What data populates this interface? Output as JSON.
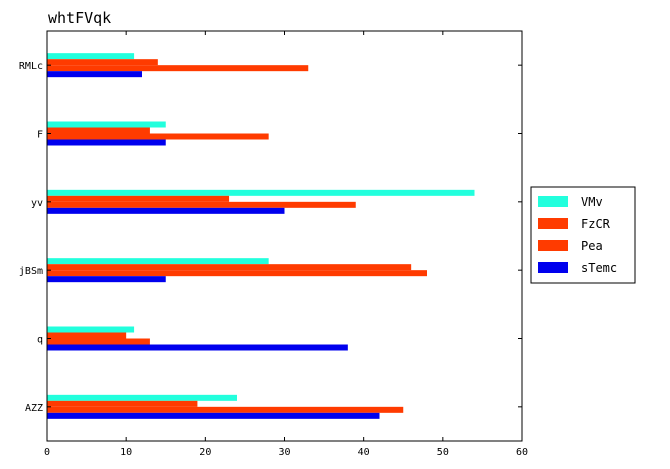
{
  "chart_data": {
    "type": "bar",
    "orientation": "horizontal",
    "title": "whtFVqk",
    "xlabel": "",
    "ylabel": "",
    "xlim": [
      0,
      60
    ],
    "xticks": [
      "0",
      "10",
      "20",
      "30",
      "40",
      "50",
      "60"
    ],
    "categories": [
      "RMLc",
      "F",
      "yv",
      "jBSm",
      "q",
      "AZZ"
    ],
    "series": [
      {
        "name": "VMv",
        "color": "#22ffdd",
        "values": [
          11,
          15,
          54,
          28,
          11,
          24
        ]
      },
      {
        "name": "FzCR",
        "color": "#ff3b00",
        "values": [
          14,
          13,
          23,
          46,
          10,
          19
        ]
      },
      {
        "name": "Pea",
        "color": "#ff3b00",
        "values": [
          33,
          28,
          39,
          48,
          13,
          45
        ]
      },
      {
        "name": "sTemc",
        "color": "#0000ee",
        "values": [
          12,
          15,
          30,
          15,
          38,
          42
        ]
      }
    ],
    "grid": false,
    "legend_position": "right"
  }
}
